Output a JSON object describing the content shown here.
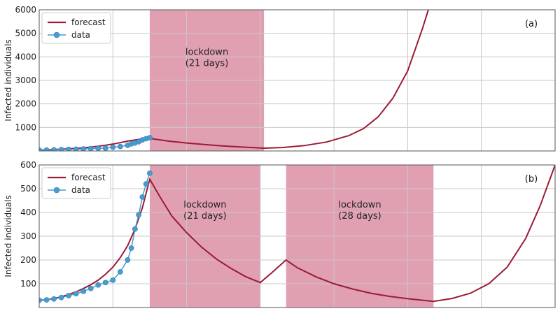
{
  "colors": {
    "forecast": "#9b1b36",
    "data": "#4a9ccf",
    "data_edge": "#2f7fb5",
    "lockdown": "#dc8fa5",
    "grid": "#c8c8c8",
    "frame": "#555555"
  },
  "chart_data": [
    {
      "type": "line",
      "panel_label": "(a)",
      "xlabel": "",
      "ylabel": "Infected individuals",
      "xlim": [
        0,
        140
      ],
      "ylim": [
        0,
        6000
      ],
      "yticks": [
        1000,
        2000,
        3000,
        4000,
        5000,
        6000
      ],
      "yticklabels": [
        "1000",
        "2000",
        "3000",
        "4000",
        "5000",
        "6000"
      ],
      "xgrid": [
        20,
        40,
        60,
        80,
        100,
        120
      ],
      "grid": true,
      "legend": {
        "position": "top-left",
        "entries": [
          "forecast",
          "data"
        ]
      },
      "lockdowns": [
        {
          "start": 30,
          "end": 61,
          "label": [
            "lockdown",
            "(21 days)"
          ]
        }
      ],
      "series": [
        {
          "name": "forecast",
          "style": "line",
          "x": [
            0,
            3,
            6,
            9,
            12,
            15,
            18,
            21,
            24,
            27,
            30,
            35,
            40,
            45,
            50,
            55,
            61,
            66,
            72,
            78,
            84,
            88,
            92,
            96,
            100,
            104,
            106
          ],
          "y": [
            40,
            55,
            75,
            100,
            135,
            180,
            240,
            320,
            420,
            490,
            535,
            420,
            340,
            270,
            210,
            165,
            120,
            145,
            230,
            380,
            650,
            950,
            1450,
            2250,
            3400,
            5200,
            6200
          ]
        },
        {
          "name": "data",
          "style": "markers+line",
          "x": [
            0,
            2,
            4,
            6,
            8,
            10,
            12,
            14,
            16,
            18,
            20,
            22,
            24,
            25,
            26,
            27,
            28,
            29,
            30
          ],
          "y": [
            35,
            38,
            45,
            55,
            65,
            75,
            85,
            100,
            110,
            120,
            160,
            190,
            240,
            300,
            340,
            390,
            470,
            520,
            565
          ]
        }
      ]
    },
    {
      "type": "line",
      "panel_label": "(b)",
      "xlabel": "",
      "ylabel": "Infected individuals",
      "xlim": [
        0,
        140
      ],
      "ylim": [
        0,
        600
      ],
      "yticks": [
        100,
        200,
        300,
        400,
        500,
        600
      ],
      "yticklabels": [
        "100",
        "200",
        "300",
        "400",
        "500",
        "600"
      ],
      "xgrid": [
        20,
        40,
        60,
        80,
        100,
        120
      ],
      "grid": true,
      "legend": {
        "position": "top-left",
        "entries": [
          "forecast",
          "data"
        ]
      },
      "lockdowns": [
        {
          "start": 30,
          "end": 60,
          "label": [
            "lockdown",
            "(21 days)"
          ]
        },
        {
          "start": 67,
          "end": 107,
          "label": [
            "lockdown",
            "(28 days)"
          ]
        }
      ],
      "series": [
        {
          "name": "forecast",
          "style": "line",
          "x": [
            0,
            2,
            4,
            6,
            8,
            10,
            12,
            14,
            16,
            18,
            20,
            22,
            24,
            26,
            28,
            30,
            33,
            36,
            40,
            44,
            48,
            52,
            56,
            60,
            63,
            67,
            70,
            75,
            80,
            85,
            90,
            95,
            100,
            107,
            112,
            117,
            122,
            127,
            132,
            136,
            140
          ],
          "y": [
            30,
            33,
            38,
            45,
            55,
            66,
            80,
            96,
            115,
            140,
            170,
            210,
            260,
            330,
            420,
            540,
            460,
            385,
            315,
            255,
            205,
            165,
            130,
            105,
            145,
            200,
            168,
            130,
            100,
            78,
            60,
            47,
            37,
            26,
            38,
            60,
            100,
            170,
            290,
            430,
            600
          ]
        },
        {
          "name": "data",
          "style": "markers+line",
          "x": [
            0,
            2,
            4,
            6,
            8,
            10,
            12,
            14,
            16,
            18,
            20,
            22,
            24,
            25,
            26,
            27,
            28,
            29,
            30
          ],
          "y": [
            30,
            32,
            36,
            42,
            50,
            58,
            68,
            80,
            95,
            105,
            115,
            150,
            200,
            250,
            330,
            390,
            465,
            520,
            565
          ]
        }
      ]
    }
  ]
}
